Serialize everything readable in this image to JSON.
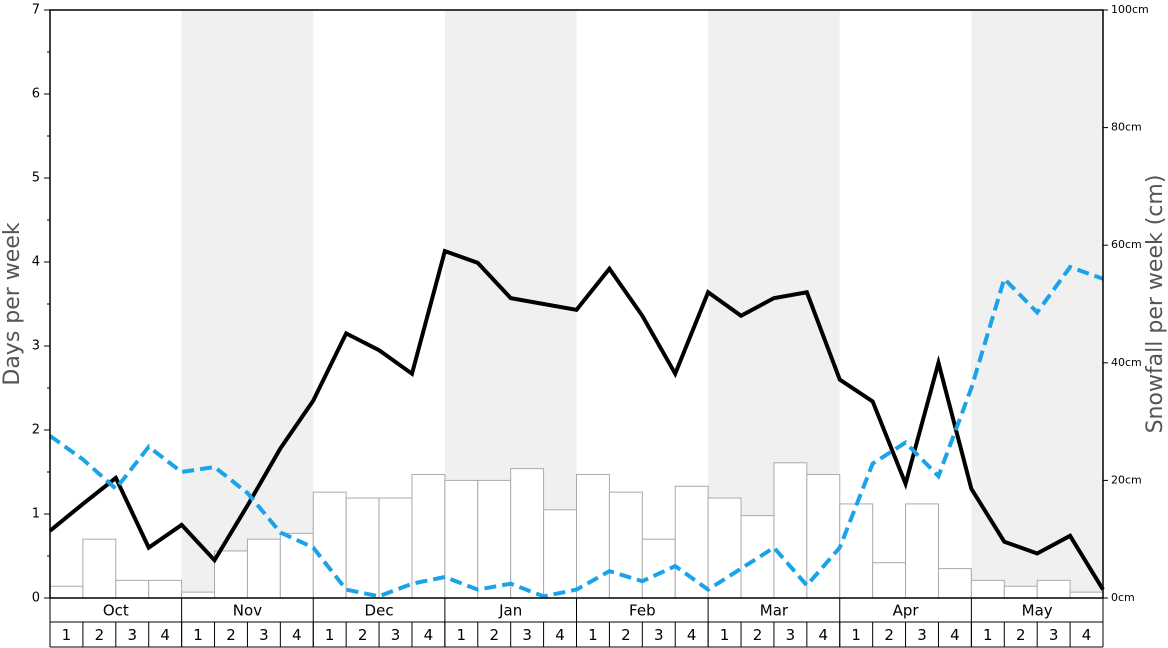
{
  "chart_data": {
    "type": "combo",
    "y_label": "Days per week",
    "y2_label": "Snowfall per week (cm)",
    "months": [
      "Oct",
      "Nov",
      "Dec",
      "Jan",
      "Feb",
      "Mar",
      "Apr",
      "May"
    ],
    "weeks": [
      "1",
      "2",
      "3",
      "4",
      "1",
      "2",
      "3",
      "4",
      "1",
      "2",
      "3",
      "4",
      "1",
      "2",
      "3",
      "4",
      "1",
      "2",
      "3",
      "4",
      "1",
      "2",
      "3",
      "4",
      "1",
      "2",
      "3",
      "4",
      "1",
      "2",
      "3",
      "4"
    ],
    "shade_color": "#f0f0f0",
    "bars": {
      "axis": "y2",
      "color": "#ffffff",
      "edge": "#aaaaaa",
      "values": [
        2,
        10,
        3,
        3,
        1,
        8,
        10,
        11,
        18,
        17,
        17,
        21,
        20,
        20,
        22,
        15,
        21,
        18,
        10,
        19,
        17,
        14,
        23,
        21,
        16,
        6,
        16,
        5,
        3,
        2,
        3,
        1
      ]
    },
    "x": [
      0,
      1,
      2,
      3,
      4,
      5,
      6,
      7,
      8,
      9,
      10,
      11,
      12,
      13,
      14,
      15,
      16,
      17,
      18,
      19,
      20,
      21,
      22,
      23,
      24,
      25,
      26,
      27,
      28,
      29,
      30,
      31,
      32
    ],
    "xlim": [
      0,
      32
    ],
    "series": [
      {
        "color": "#000000",
        "dashed": false,
        "values": [
          0.8,
          1.12,
          1.43,
          0.6,
          0.87,
          0.45,
          1.1,
          1.78,
          2.35,
          3.15,
          2.95,
          2.67,
          4.13,
          3.99,
          3.57,
          3.5,
          3.43,
          3.92,
          3.36,
          2.67,
          3.64,
          3.36,
          3.57,
          3.64,
          2.6,
          2.34,
          1.36,
          2.8,
          1.3,
          0.67,
          0.53,
          0.74,
          0.1
        ]
      },
      {
        "color": "#1aa3e8",
        "dashed": true,
        "values": [
          1.93,
          1.65,
          1.3,
          1.8,
          1.5,
          1.56,
          1.25,
          0.78,
          0.6,
          0.1,
          0.02,
          0.17,
          0.25,
          0.1,
          0.17,
          0.02,
          0.1,
          0.32,
          0.2,
          0.38,
          0.1,
          0.35,
          0.6,
          0.15,
          0.6,
          1.6,
          1.85,
          1.45,
          2.5,
          3.8,
          3.4,
          3.94,
          3.8
        ]
      }
    ],
    "ylim": [
      0,
      7
    ],
    "yticks": [
      0,
      1,
      2,
      3,
      4,
      5,
      6,
      7
    ],
    "yminorticks": [
      0.5,
      1.5,
      2.5,
      3.5,
      4.5,
      5.5,
      6.5
    ],
    "y2lim": [
      0,
      100
    ],
    "y2ticks": [
      {
        "value": 0,
        "label": "0cm"
      },
      {
        "value": 20,
        "label": "20cm"
      },
      {
        "value": 40,
        "label": "40cm"
      },
      {
        "value": 60,
        "label": "60cm"
      },
      {
        "value": 80,
        "label": "80cm"
      },
      {
        "value": 100,
        "label": "100cm"
      }
    ]
  }
}
